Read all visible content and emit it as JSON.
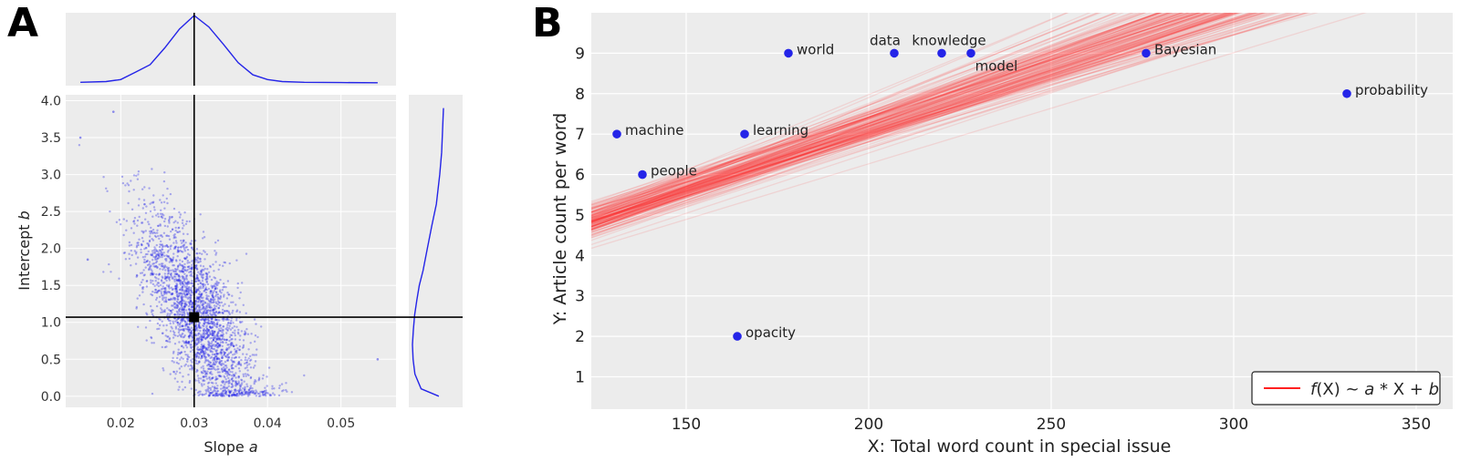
{
  "panels": {
    "a_label": "A",
    "b_label": "B"
  },
  "chart_data": [
    {
      "type": "scatter",
      "panel": "A",
      "xlabel_text": "Slope ",
      "xlabel_var": "a",
      "ylabel_text": "Intercept ",
      "ylabel_var": "b",
      "xlim": [
        0.0125,
        0.0575
      ],
      "ylim": [
        -0.15,
        4.08
      ],
      "xticks": [
        "0.02",
        "0.03",
        "0.04",
        "0.05"
      ],
      "xtick_values": [
        0.02,
        0.03,
        0.04,
        0.05
      ],
      "yticks": [
        "0.0",
        "0.5",
        "1.0",
        "1.5",
        "2.0",
        "2.5",
        "3.0",
        "3.5",
        "4.0"
      ],
      "ytick_values": [
        0,
        0.5,
        1,
        1.5,
        2,
        2.5,
        3,
        3.5,
        4
      ],
      "point_estimate": {
        "a": 0.03,
        "b": 1.07
      },
      "samples_approx": {
        "n": 2600,
        "a_mean": 0.0305,
        "a_sd": 0.004,
        "b_mean": 1.07,
        "b_sd": 0.72,
        "correlation": -0.72,
        "a_range": [
          0.014,
          0.055
        ],
        "b_range": [
          0.0,
          3.9
        ]
      },
      "marginal_a_density": {
        "x": [
          0.0145,
          0.018,
          0.02,
          0.022,
          0.024,
          0.026,
          0.028,
          0.03,
          0.032,
          0.034,
          0.036,
          0.038,
          0.04,
          0.042,
          0.045,
          0.05,
          0.055
        ],
        "density": [
          0.01,
          0.02,
          0.05,
          0.16,
          0.27,
          0.52,
          0.8,
          1.0,
          0.83,
          0.57,
          0.3,
          0.12,
          0.05,
          0.02,
          0.01,
          0.005,
          0.003
        ]
      },
      "marginal_b_density": {
        "b": [
          0.0,
          0.1,
          0.3,
          0.5,
          0.7,
          0.9,
          1.1,
          1.3,
          1.5,
          1.7,
          2.0,
          2.3,
          2.6,
          3.0,
          3.3,
          3.6,
          3.9
        ],
        "density": [
          0.15,
          0.72,
          0.92,
          0.98,
          1.0,
          0.97,
          0.93,
          0.86,
          0.78,
          0.66,
          0.52,
          0.38,
          0.23,
          0.12,
          0.06,
          0.03,
          0.0
        ]
      },
      "grid": true,
      "colors": {
        "points": "#2424e8",
        "crosshair": "#000000",
        "bg": "#ececec"
      }
    },
    {
      "type": "scatter",
      "panel": "B",
      "xlabel": "X: Total word count in special issue",
      "ylabel": "Y: Article count per word",
      "xlim": [
        124,
        360
      ],
      "ylim": [
        0.2,
        10.0
      ],
      "xticks": [
        "150",
        "200",
        "250",
        "300",
        "350"
      ],
      "xtick_values": [
        150,
        200,
        250,
        300,
        350
      ],
      "yticks": [
        "1",
        "2",
        "3",
        "4",
        "5",
        "6",
        "7",
        "8",
        "9"
      ],
      "ytick_values": [
        1,
        2,
        3,
        4,
        5,
        6,
        7,
        8,
        9
      ],
      "points": [
        {
          "label": "machine",
          "x": 131,
          "y": 7,
          "anchor": "right"
        },
        {
          "label": "people",
          "x": 138,
          "y": 6,
          "anchor": "right"
        },
        {
          "label": "learning",
          "x": 166,
          "y": 7,
          "anchor": "right"
        },
        {
          "label": "opacity",
          "x": 164,
          "y": 2,
          "anchor": "right"
        },
        {
          "label": "world",
          "x": 178,
          "y": 9,
          "anchor": "right"
        },
        {
          "label": "data",
          "x": 207,
          "y": 9,
          "anchor": "above"
        },
        {
          "label": "knowledge",
          "x": 220,
          "y": 9,
          "anchor": "above"
        },
        {
          "label": "model",
          "x": 228,
          "y": 9,
          "anchor": "below"
        },
        {
          "label": "Bayesian",
          "x": 276,
          "y": 9,
          "anchor": "right"
        },
        {
          "label": "probability",
          "x": 331,
          "y": 8,
          "anchor": "right"
        }
      ],
      "regression_lines": {
        "model": "f(X) ~ a*X + b",
        "count": 150,
        "slope_range": [
          0.022,
          0.04
        ],
        "intercept_range": [
          0.2,
          2.3
        ]
      },
      "legend": {
        "label_prefix": "f",
        "label_rest": "(X) ~ ",
        "a": "a",
        "times": " * X + ",
        "b": "b",
        "position": "lower-right"
      },
      "grid": true,
      "colors": {
        "points": "#2424e8",
        "lines": "#ff2020",
        "bg": "#ececec"
      }
    }
  ]
}
